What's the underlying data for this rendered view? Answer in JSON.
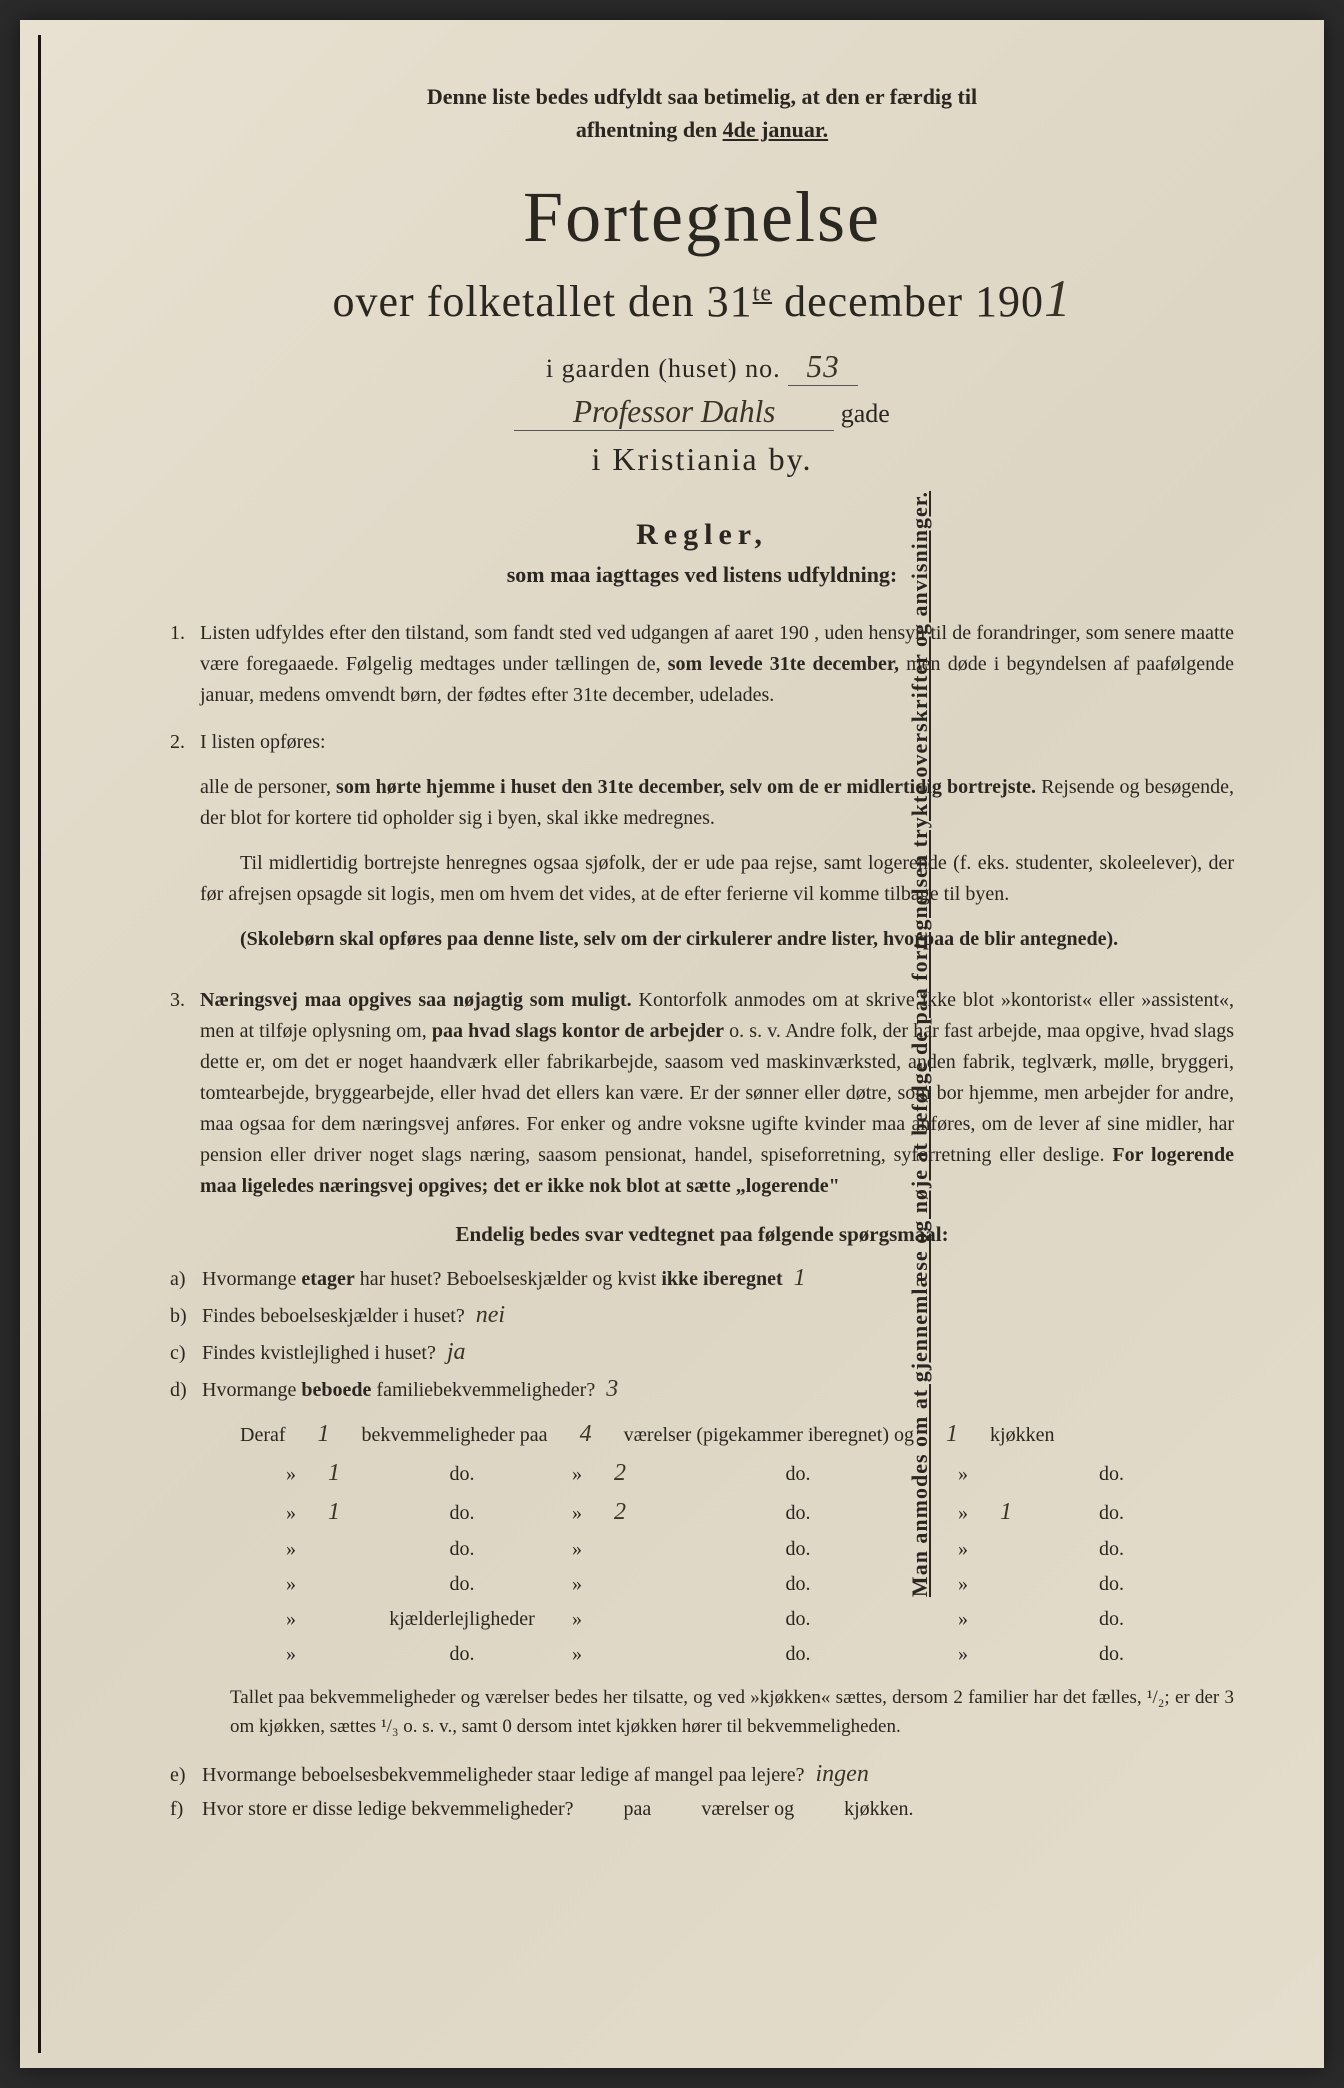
{
  "sidebar": "Man anmodes om at gjennemlæse og nøje at befølge de paa fortegnelsen trykte overskrifter og anvisninger.",
  "top_note_1": "Denne liste bedes udfyldt saa betimelig, at den er færdig til",
  "top_note_2": "afhentning den",
  "top_note_date": "4de januar.",
  "title1": "Fortegnelse",
  "title2_pre": "over folketallet den 31",
  "title2_sup": "te",
  "title2_post": " december 190",
  "title2_hw": "1",
  "gaarden_label": "i gaarden (huset) no.",
  "gaarden_no": "53",
  "street": "Professor Dahls",
  "gade": "gade",
  "city": "i Kristiania by.",
  "regler": "Regler,",
  "regler_sub": "som maa iagttages ved listens udfyldning:",
  "rules": {
    "r1_num": "1.",
    "r1": "Listen udfyldes efter den tilstand, som fandt sted ved udgangen af aaret 190  , uden hensyn til de forandringer, som senere maatte være foregaaede. Følgelig medtages under tællingen de, <b>som levede 31te december,</b> men døde i begyndelsen af paafølgende januar, medens omvendt børn, der fødtes efter 31te december, udelades.",
    "r2_num": "2.",
    "r2a": "I listen opføres:",
    "r2b": "alle de personer, <b>som hørte hjemme i huset den 31te december, selv om de er midlertidig bortrejste.</b> Rejsende og besøgende, der blot for kortere tid opholder sig i byen, skal ikke medregnes.",
    "r2c": "Til midlertidig bortrejste henregnes ogsaa sjøfolk, der er ude paa rejse, samt logerende (f. eks. studenter, skoleelever), der før afrejsen opsagde sit logis, men om hvem det vides, at de efter ferierne vil komme tilbage til byen.",
    "r2d": "<b>(Skolebørn skal opføres paa denne liste, selv om der cirkulerer andre lister, hvorpaa de blir antegnede).</b>",
    "r3_num": "3.",
    "r3": "<b>Næringsvej maa opgives saa nøjagtig som muligt.</b> Kontorfolk anmodes om at skrive ikke blot »kontorist« eller »assistent«, men at tilføje oplysning om, <b>paa hvad slags kontor de arbejder</b> o. s. v. Andre folk, der har fast arbejde, maa opgive, hvad slags dette er, om det er noget haandværk eller fabrikarbejde, saasom ved maskinværksted, anden fabrik, teglværk, mølle, bryggeri, tomtearbejde, bryggearbejde, eller hvad det ellers kan være. Er der sønner eller døtre, som bor hjemme, men arbejder for andre, maa ogsaa for dem næringsvej anføres. For enker og andre voksne ugifte kvinder maa anføres, om de lever af sine midler, har pension eller driver noget slags næring, saasom pensionat, handel, spiseforretning, syforretning eller deslige. <b>For logerende maa ligeledes næringsvej opgives; det er ikke nok blot at sætte „logerende\"</b>"
  },
  "questions_title": "Endelig bedes svar vedtegnet paa følgende spørgsmaal:",
  "questions": {
    "a_label": "a)",
    "a_text": "Hvormange <b>etager</b> har huset? Beboelseskjælder og kvist <b>ikke iberegnet</b>",
    "a_ans": "1",
    "b_label": "b)",
    "b_text": "Findes beboelseskjælder i huset?",
    "b_ans": "nei",
    "c_label": "c)",
    "c_text": "Findes kvistlejlighed i huset?",
    "c_ans": "ja",
    "d_label": "d)",
    "d_text": "Hvormange <b>beboede</b> familiebekvemmeligheder?",
    "d_ans": "3"
  },
  "table": {
    "header": {
      "deraf": "Deraf",
      "c1": "1",
      "bekv": "bekvemmeligheder paa",
      "c2": "4",
      "vaer": "værelser (pigekammer iberegnet) og",
      "c3": "1",
      "kjok": "kjøkken"
    },
    "rows": [
      {
        "c1": "1",
        "l1": "do.",
        "c2": "2",
        "l2": "do.",
        "c3": "",
        "l3": "do."
      },
      {
        "c1": "1",
        "l1": "do.",
        "c2": "2",
        "l2": "do.",
        "c3": "1",
        "l3": "do."
      },
      {
        "c1": "",
        "l1": "do.",
        "c2": "",
        "l2": "do.",
        "c3": "",
        "l3": "do."
      },
      {
        "c1": "",
        "l1": "do.",
        "c2": "",
        "l2": "do.",
        "c3": "",
        "l3": "do."
      },
      {
        "c1": "",
        "l1": "kjælderlejligheder",
        "c2": "",
        "l2": "do.",
        "c3": "",
        "l3": "do."
      },
      {
        "c1": "",
        "l1": "do.",
        "c2": "",
        "l2": "do.",
        "c3": "",
        "l3": "do."
      }
    ],
    "quote": "»",
    "do": "do."
  },
  "footnote": "Tallet paa bekvemmeligheder og værelser bedes her tilsatte, og ved »kjøkken« sættes, dersom 2 familier har det fælles, ¹/₂; er der 3 om kjøkken, sættes ¹/₃ o. s. v., samt 0 dersom intet kjøkken hører til bekvemmeligheden.",
  "q_ef": {
    "e_label": "e)",
    "e_text": "Hvormange beboelsesbekvemmeligheder staar ledige af mangel paa lejere?",
    "e_ans": "ingen",
    "f_label": "f)",
    "f_text": "Hvor store er disse ledige bekvemmeligheder?",
    "f_paa": "paa",
    "f_vaer": "værelser og",
    "f_kjok": "kjøkken."
  },
  "colors": {
    "paper": "#e5ddcc",
    "text": "#2a2620",
    "border": "#1a1510"
  }
}
